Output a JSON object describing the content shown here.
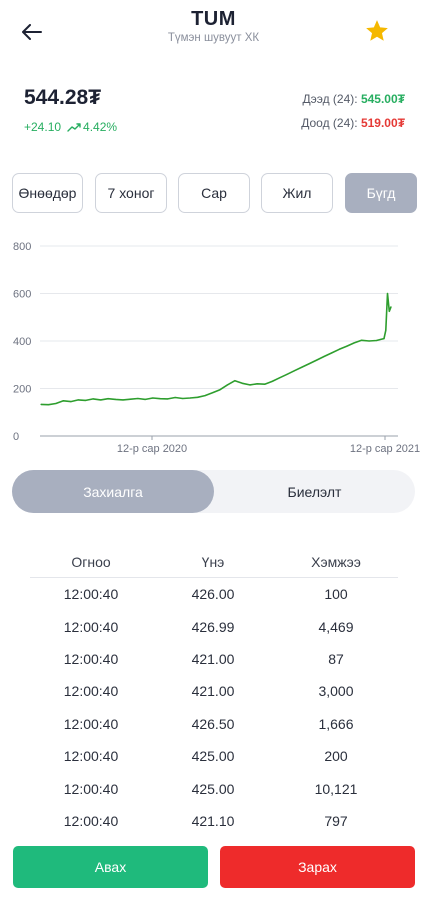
{
  "header": {
    "ticker": "TUM",
    "company": "Түмэн шувуут ХК"
  },
  "price": {
    "current": "544.28₮",
    "change": "+24.10",
    "change_pct": "4.42%",
    "high_label": "Дээд (24):",
    "high_value": "545.00₮",
    "low_label": "Доод (24):",
    "low_value": "519.00₮"
  },
  "periods": [
    "Өнөөдөр",
    "7 хоног",
    "Сар",
    "Жил",
    "Бүгд"
  ],
  "active_period": "Бүгд",
  "chart_data": {
    "type": "line",
    "title": "",
    "xlabel": "",
    "ylabel": "",
    "ylim": [
      0,
      800
    ],
    "yticks": [
      0,
      200,
      400,
      600,
      800
    ],
    "xtick_labels": [
      "12-р сар 2020",
      "12-р сар 2021"
    ],
    "grid": true,
    "color": "#2e9e2e",
    "series": [
      {
        "values": [
          133,
          132,
          137,
          148,
          145,
          152,
          150,
          156,
          152,
          157,
          154,
          152,
          155,
          158,
          154,
          160,
          157,
          156,
          162,
          158,
          160,
          163,
          170,
          182,
          195,
          215,
          233,
          222,
          215,
          220,
          218,
          230,
          245,
          260,
          275,
          290,
          305,
          320,
          335,
          350,
          365,
          378,
          392,
          403,
          400,
          402,
          410,
          445,
          600,
          525,
          544
        ]
      }
    ]
  },
  "tabs": {
    "orders": "Захиалга",
    "executed": "Биелэлт"
  },
  "table": {
    "headers": [
      "Огноо",
      "Үнэ",
      "Хэмжээ"
    ],
    "rows": [
      [
        "12:00:40",
        "426.00",
        "100"
      ],
      [
        "12:00:40",
        "426.99",
        "4,469"
      ],
      [
        "12:00:40",
        "421.00",
        "87"
      ],
      [
        "12:00:40",
        "421.00",
        "3,000"
      ],
      [
        "12:00:40",
        "426.50",
        "1,666"
      ],
      [
        "12:00:40",
        "425.00",
        "200"
      ],
      [
        "12:00:40",
        "425.00",
        "10,121"
      ],
      [
        "12:00:40",
        "421.10",
        "797"
      ]
    ]
  },
  "actions": {
    "buy": "Авах",
    "sell": "Зарах"
  },
  "colors": {
    "accent_gray": "#a8afbf",
    "up": "#27ae60",
    "down": "#e53935",
    "buy": "#1fba7c",
    "sell": "#ee2b2b",
    "star": "#f5b800"
  }
}
